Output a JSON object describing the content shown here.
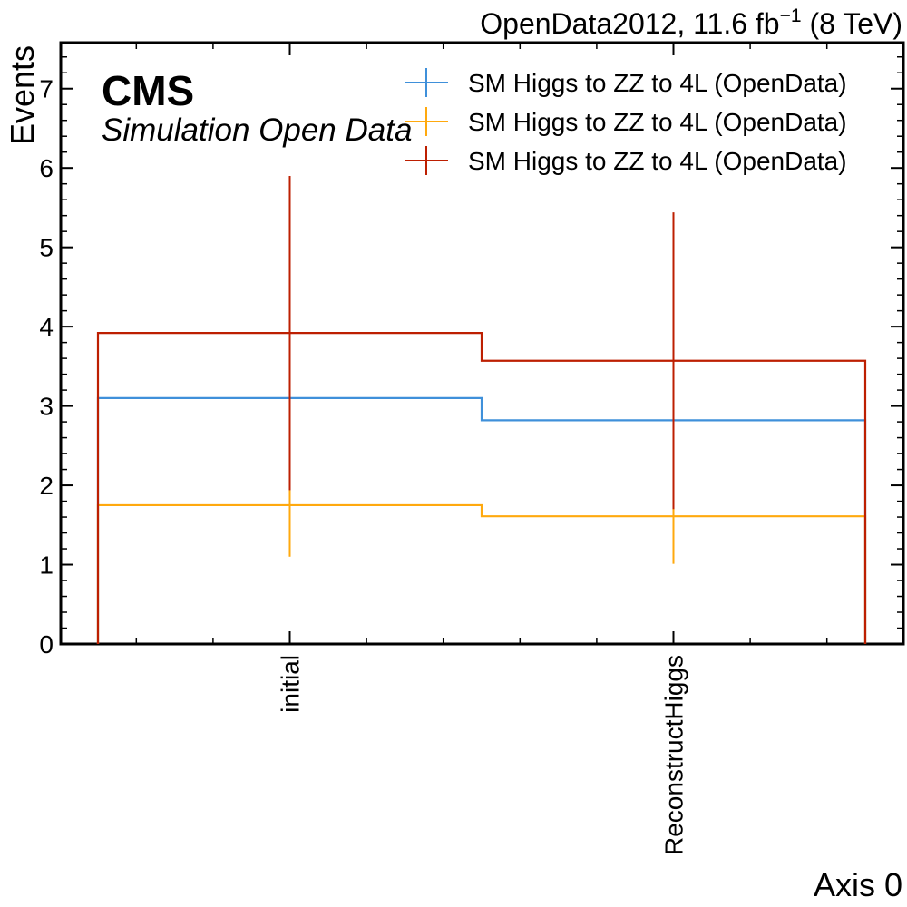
{
  "chart_data": {
    "type": "step",
    "experiment_label": "CMS",
    "experiment_sublabel": "Simulation Open Data",
    "lumi_label": {
      "prefix": "OpenData2012, 11.6 fb",
      "superscript": "−1",
      "suffix": " (8 TeV)"
    },
    "xlabel": "Axis 0",
    "ylabel": "Events",
    "ylim": [
      0,
      7.58
    ],
    "yticks": [
      0,
      1,
      2,
      3,
      4,
      5,
      6,
      7
    ],
    "categories": [
      "initial",
      "ReconstructHiggs"
    ],
    "legend_position": "top-right",
    "series": [
      {
        "name": "SM Higgs to ZZ to 4L (OpenData)",
        "color": "#3f90da",
        "values": [
          3.1,
          2.82
        ],
        "errors": [
          0,
          0
        ]
      },
      {
        "name": "SM Higgs to ZZ to 4L (OpenData)",
        "color": "#ffa90e",
        "values": [
          1.75,
          1.61
        ],
        "errors": [
          0.65,
          0.6
        ]
      },
      {
        "name": "SM Higgs to ZZ to 4L (OpenData)",
        "color": "#bd1f01",
        "values": [
          3.92,
          3.57
        ],
        "errors": [
          1.98,
          1.87
        ]
      }
    ]
  }
}
